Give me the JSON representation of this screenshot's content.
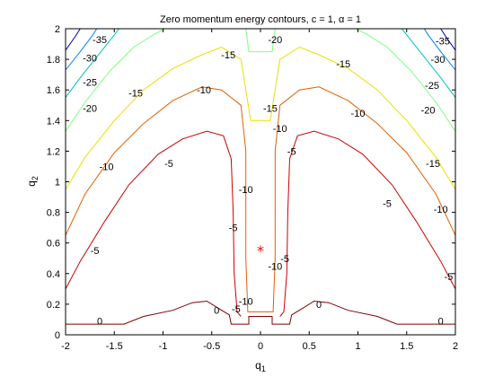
{
  "chart_data": {
    "type": "contour",
    "title": "Zero momentum energy contours, c = 1, α = 1",
    "xlabel": "q",
    "xlabel_sub": "1",
    "ylabel": "q",
    "ylabel_sub": "2",
    "xlim": [
      -2,
      2
    ],
    "ylim": [
      0,
      2
    ],
    "xticks": [
      "-2",
      "-1.5",
      "-1",
      "-0.5",
      "0",
      "0.5",
      "1",
      "1.5",
      "2"
    ],
    "xtick_values": [
      -2,
      -1.5,
      -1,
      -0.5,
      0,
      0.5,
      1,
      1.5,
      2
    ],
    "yticks": [
      "0",
      "0.2",
      "0.4",
      "0.6",
      "0.8",
      "1",
      "1.2",
      "1.4",
      "1.6",
      "1.8",
      "2"
    ],
    "ytick_values": [
      0,
      0.2,
      0.4,
      0.6,
      0.8,
      1,
      1.2,
      1.4,
      1.6,
      1.8,
      2
    ],
    "grid": false,
    "marker": {
      "x": 0,
      "y": 0.55,
      "symbol": "*",
      "color": "#ff0000"
    },
    "levels": [
      {
        "level": 0,
        "color": "#800000",
        "lines": [
          [
            [
              -2,
              0.07
            ],
            [
              -1.4,
              0.07
            ],
            [
              -1.2,
              0.12
            ],
            [
              -0.9,
              0.16
            ],
            [
              -0.7,
              0.21
            ],
            [
              -0.55,
              0.22
            ],
            [
              -0.45,
              0.18
            ],
            [
              -0.32,
              0.13
            ],
            [
              -0.3,
              0.07
            ],
            [
              -0.12,
              0.07
            ],
            [
              -0.12,
              0.12
            ],
            [
              0.12,
              0.12
            ],
            [
              0.12,
              0.07
            ],
            [
              0.3,
              0.07
            ],
            [
              0.32,
              0.13
            ],
            [
              0.45,
              0.18
            ],
            [
              0.55,
              0.22
            ],
            [
              0.7,
              0.21
            ],
            [
              0.9,
              0.16
            ],
            [
              1.2,
              0.12
            ],
            [
              1.4,
              0.07
            ],
            [
              2,
              0.07
            ]
          ]
        ],
        "labels": [
          {
            "x": -1.65,
            "y": 0.09,
            "text": "0"
          },
          {
            "x": -0.45,
            "y": 0.16,
            "text": "0"
          },
          {
            "x": 0.6,
            "y": 0.2,
            "text": "0"
          },
          {
            "x": 1.85,
            "y": 0.09,
            "text": "0"
          }
        ]
      },
      {
        "level": -5,
        "color": "#cc0000",
        "lines": [
          [
            [
              -2,
              0.3
            ],
            [
              -1.85,
              0.48
            ],
            [
              -1.6,
              0.74
            ],
            [
              -1.35,
              0.98
            ],
            [
              -1.05,
              1.18
            ],
            [
              -0.8,
              1.28
            ],
            [
              -0.55,
              1.33
            ],
            [
              -0.38,
              1.3
            ],
            [
              -0.3,
              1.15
            ],
            [
              -0.28,
              0.8
            ],
            [
              -0.27,
              0.4
            ],
            [
              -0.24,
              0.15
            ],
            [
              -0.2,
              0.12
            ]
          ],
          [
            [
              0.2,
              0.12
            ],
            [
              0.24,
              0.15
            ],
            [
              0.27,
              0.4
            ],
            [
              0.28,
              0.8
            ],
            [
              0.3,
              1.15
            ],
            [
              0.38,
              1.3
            ],
            [
              0.55,
              1.33
            ],
            [
              0.8,
              1.28
            ],
            [
              1.05,
              1.18
            ],
            [
              1.35,
              0.98
            ],
            [
              1.6,
              0.74
            ],
            [
              1.85,
              0.48
            ],
            [
              2,
              0.3
            ]
          ]
        ],
        "labels": [
          {
            "x": -1.7,
            "y": 0.55,
            "text": "-5"
          },
          {
            "x": -0.94,
            "y": 1.12,
            "text": "-5"
          },
          {
            "x": -0.28,
            "y": 0.7,
            "text": "-5"
          },
          {
            "x": -0.25,
            "y": 0.17,
            "text": "-5"
          },
          {
            "x": 0.25,
            "y": 0.5,
            "text": "-5"
          },
          {
            "x": 0.32,
            "y": 1.2,
            "text": "-5"
          },
          {
            "x": 1.3,
            "y": 0.86,
            "text": "-5"
          },
          {
            "x": 1.93,
            "y": 0.38,
            "text": "-5"
          }
        ]
      },
      {
        "level": -10,
        "color": "#e06000",
        "lines": [
          [
            [
              -2,
              0.65
            ],
            [
              -1.8,
              0.92
            ],
            [
              -1.5,
              1.19
            ],
            [
              -1.2,
              1.38
            ],
            [
              -0.9,
              1.53
            ],
            [
              -0.6,
              1.62
            ],
            [
              -0.4,
              1.6
            ],
            [
              -0.2,
              1.5
            ],
            [
              -0.15,
              1.2
            ],
            [
              -0.15,
              0.5
            ],
            [
              -0.13,
              0.15
            ],
            [
              0.13,
              0.15
            ],
            [
              0.15,
              0.5
            ],
            [
              0.15,
              1.2
            ],
            [
              0.2,
              1.5
            ],
            [
              0.4,
              1.6
            ],
            [
              0.6,
              1.62
            ],
            [
              0.9,
              1.53
            ],
            [
              1.2,
              1.38
            ],
            [
              1.5,
              1.19
            ],
            [
              1.8,
              0.92
            ],
            [
              2,
              0.65
            ]
          ]
        ],
        "labels": [
          {
            "x": -1.58,
            "y": 1.1,
            "text": "-10"
          },
          {
            "x": -0.58,
            "y": 1.6,
            "text": "-10"
          },
          {
            "x": -0.15,
            "y": 0.95,
            "text": "-10"
          },
          {
            "x": -0.15,
            "y": 0.22,
            "text": "-10"
          },
          {
            "x": 0.15,
            "y": 0.45,
            "text": "-10"
          },
          {
            "x": 0.2,
            "y": 1.35,
            "text": "-10"
          },
          {
            "x": 1.0,
            "y": 1.45,
            "text": "-10"
          },
          {
            "x": 1.85,
            "y": 0.82,
            "text": "-10"
          }
        ]
      },
      {
        "level": -15,
        "color": "#e8e000",
        "lines": [
          [
            [
              -2,
              0.95
            ],
            [
              -1.8,
              1.16
            ],
            [
              -1.5,
              1.4
            ],
            [
              -1.2,
              1.6
            ],
            [
              -0.9,
              1.74
            ],
            [
              -0.6,
              1.83
            ],
            [
              -0.4,
              1.88
            ],
            [
              -0.2,
              1.8
            ],
            [
              -0.1,
              1.4
            ],
            [
              0.1,
              1.4
            ],
            [
              0.2,
              1.8
            ],
            [
              0.4,
              1.88
            ],
            [
              0.6,
              1.83
            ],
            [
              0.9,
              1.74
            ],
            [
              1.2,
              1.6
            ],
            [
              1.5,
              1.4
            ],
            [
              1.8,
              1.16
            ],
            [
              2,
              0.95
            ]
          ]
        ],
        "labels": [
          {
            "x": -1.28,
            "y": 1.58,
            "text": "-15"
          },
          {
            "x": -0.33,
            "y": 1.83,
            "text": "-15"
          },
          {
            "x": 0.1,
            "y": 1.48,
            "text": "-15"
          },
          {
            "x": 0.85,
            "y": 1.77,
            "text": "-15"
          },
          {
            "x": 1.77,
            "y": 1.12,
            "text": "-15"
          }
        ]
      },
      {
        "level": -20,
        "color": "#80ff80",
        "lines": [
          [
            [
              -2,
              1.33
            ],
            [
              -1.8,
              1.52
            ],
            [
              -1.55,
              1.72
            ],
            [
              -1.3,
              1.88
            ],
            [
              -1.1,
              1.96
            ],
            [
              -0.98,
              2.0
            ]
          ],
          [
            [
              -0.15,
              2.0
            ],
            [
              -0.12,
              1.85
            ],
            [
              0.12,
              1.85
            ],
            [
              0.15,
              2.0
            ]
          ],
          [
            [
              0.98,
              2.0
            ],
            [
              1.1,
              1.96
            ],
            [
              1.3,
              1.88
            ],
            [
              1.55,
              1.72
            ],
            [
              1.8,
              1.52
            ],
            [
              2,
              1.33
            ]
          ]
        ],
        "labels": [
          {
            "x": -1.75,
            "y": 1.48,
            "text": "-20"
          },
          {
            "x": 0.15,
            "y": 1.93,
            "text": "-20"
          },
          {
            "x": 1.72,
            "y": 1.47,
            "text": "-20"
          }
        ]
      },
      {
        "level": -25,
        "color": "#00c0c0",
        "lines": [
          [
            [
              -2,
              1.55
            ],
            [
              -1.85,
              1.68
            ],
            [
              -1.65,
              1.84
            ],
            [
              -1.5,
              1.96
            ],
            [
              -1.45,
              2.0
            ]
          ],
          [
            [
              1.45,
              2.0
            ],
            [
              1.5,
              1.96
            ],
            [
              1.65,
              1.84
            ],
            [
              1.85,
              1.68
            ],
            [
              2,
              1.55
            ]
          ]
        ],
        "labels": [
          {
            "x": -1.75,
            "y": 1.65,
            "text": "-25"
          },
          {
            "x": 1.76,
            "y": 1.63,
            "text": "-25"
          }
        ]
      },
      {
        "level": -30,
        "color": "#0080ff",
        "lines": [
          [
            [
              -2,
              1.73
            ],
            [
              -1.85,
              1.85
            ],
            [
              -1.72,
              1.96
            ],
            [
              -1.68,
              2.0
            ]
          ],
          [
            [
              1.68,
              2.0
            ],
            [
              1.72,
              1.96
            ],
            [
              1.85,
              1.85
            ],
            [
              2,
              1.73
            ]
          ]
        ],
        "labels": [
          {
            "x": -1.75,
            "y": 1.81,
            "text": "-30"
          },
          {
            "x": 1.82,
            "y": 1.8,
            "text": "-30"
          }
        ]
      },
      {
        "level": -35,
        "color": "#0000c0",
        "lines": [
          [
            [
              -2,
              1.86
            ],
            [
              -1.9,
              1.95
            ],
            [
              -1.85,
              2.0
            ]
          ],
          [
            [
              1.85,
              2.0
            ],
            [
              1.9,
              1.95
            ],
            [
              2,
              1.86
            ]
          ]
        ],
        "labels": [
          {
            "x": -1.65,
            "y": 1.93,
            "text": "-35"
          },
          {
            "x": 1.87,
            "y": 1.92,
            "text": "-35"
          }
        ]
      }
    ]
  }
}
